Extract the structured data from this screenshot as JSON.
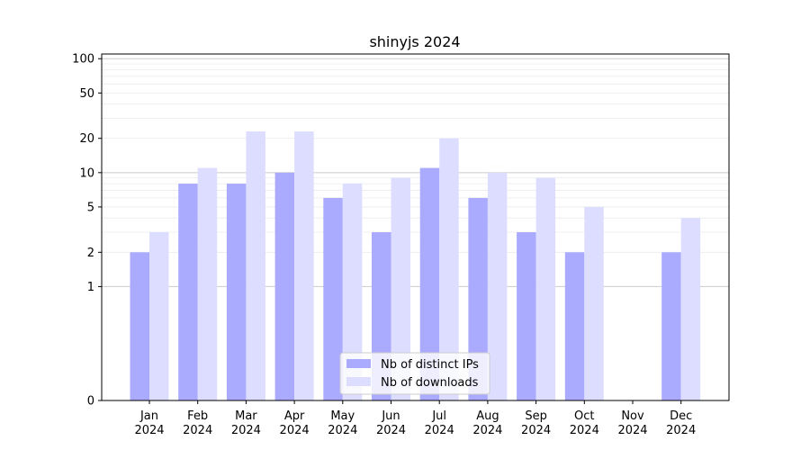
{
  "chart_data": {
    "type": "bar",
    "title": "shinyjs 2024",
    "categories": [
      "Jan\n2024",
      "Feb\n2024",
      "Mar\n2024",
      "Apr\n2024",
      "May\n2024",
      "Jun\n2024",
      "Jul\n2024",
      "Aug\n2024",
      "Sep\n2024",
      "Oct\n2024",
      "Nov\n2024",
      "Dec\n2024"
    ],
    "series": [
      {
        "name": "Nb of distinct IPs",
        "color": "#aaaaff",
        "values": [
          2,
          8,
          8,
          10,
          6,
          3,
          11,
          6,
          3,
          2,
          0,
          2
        ]
      },
      {
        "name": "Nb of downloads",
        "color": "#ddddff",
        "values": [
          3,
          11,
          23,
          23,
          8,
          9,
          20,
          10,
          9,
          5,
          0,
          4
        ]
      }
    ],
    "yscale": "symlog",
    "ylim": [
      0,
      110
    ],
    "yticks": [
      0,
      1,
      2,
      5,
      10,
      20,
      50,
      100
    ],
    "ytick_labels": [
      "0",
      "1",
      "2",
      "5",
      "10",
      "20",
      "50",
      "100"
    ],
    "xlabel": "",
    "ylabel": "",
    "grid": true,
    "legend": "lower center"
  }
}
